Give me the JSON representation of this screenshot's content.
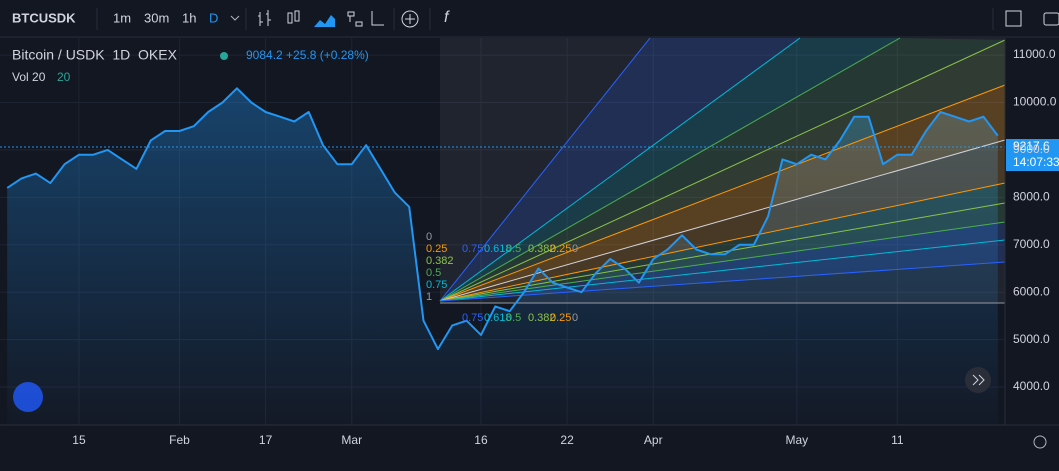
{
  "toolbar": {
    "symbol": "BTCUSDK",
    "intervals": [
      "1m",
      "30m",
      "1h",
      "D"
    ]
  },
  "legend": {
    "title": "Bitcoin / USDK  1D  OKEX",
    "quote": "9084.2 +25.8 (+0.28%)",
    "vol_label": "Vol 20",
    "vol_value": "20"
  },
  "fan": {
    "labels": [
      "0.75",
      "0.618",
      "0.5",
      "0.382",
      "0.25",
      "0"
    ],
    "side_labels": [
      "0",
      "0.25",
      "0.382",
      "0.5",
      "0.75",
      "1"
    ]
  },
  "last_price": {
    "value": 9217.6,
    "label": "9217.6",
    "countdown": "14:07:33"
  },
  "chart_data": {
    "type": "line",
    "color": "#2196f3",
    "categories": [
      null,
      null,
      null,
      null,
      null,
      "15",
      null,
      null,
      null,
      null,
      null,
      null,
      "Feb",
      null,
      null,
      null,
      null,
      null,
      "17",
      null,
      null,
      null,
      null,
      null,
      "Mar",
      null,
      null,
      null,
      null,
      null,
      null,
      null,
      null,
      "16",
      null,
      null,
      null,
      null,
      null,
      "22",
      null,
      null,
      null,
      null,
      null,
      "Apr",
      null,
      null,
      null,
      null,
      null,
      null,
      null,
      null,
      null,
      "May",
      null,
      null,
      null,
      null,
      null,
      null,
      "11",
      null,
      null,
      null,
      null,
      null,
      null,
      null
    ],
    "values": [
      8200,
      8400,
      8500,
      8300,
      8700,
      8900,
      8900,
      9000,
      8800,
      8600,
      9200,
      9400,
      9400,
      9500,
      9800,
      10000,
      10300,
      10000,
      9800,
      9700,
      9600,
      9800,
      9100,
      8700,
      8700,
      9100,
      8600,
      8100,
      7800,
      5400,
      4800,
      5300,
      5400,
      5100,
      5700,
      5600,
      6000,
      6500,
      6200,
      6100,
      6000,
      6400,
      6700,
      6500,
      6200,
      6700,
      6900,
      7200,
      6900,
      6800,
      6800,
      7000,
      7000,
      7600,
      8800,
      8700,
      8900,
      8800,
      9200,
      9700,
      9700,
      8700,
      8900,
      8900,
      9400,
      9800,
      9700,
      9600,
      9700,
      9300
    ],
    "ylim": [
      3200,
      11360
    ],
    "yticks": [
      {
        "value": 4000,
        "label": "4000.0"
      },
      {
        "value": 5000,
        "label": "5000.0"
      },
      {
        "value": 6000,
        "label": "6000.0"
      },
      {
        "value": 7000,
        "label": "7000.0"
      },
      {
        "value": 8000,
        "label": "8000.0"
      },
      {
        "value": 9000,
        "label": "9000.0"
      },
      {
        "value": 10000,
        "label": "10000.0"
      },
      {
        "value": 11000,
        "label": "11000.0"
      }
    ],
    "grid": true
  }
}
